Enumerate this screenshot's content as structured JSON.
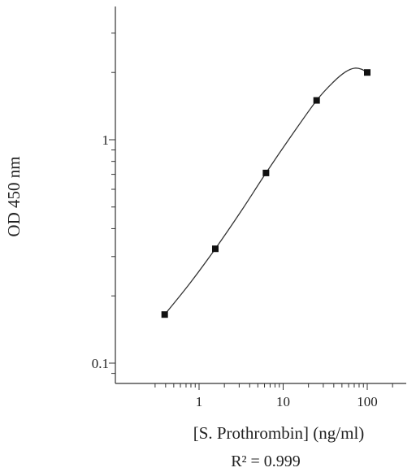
{
  "chart_data": {
    "type": "scatter",
    "title": "",
    "xlabel": "[S. Prothrombin] (ng/ml)",
    "ylabel": "OD 450 nm",
    "annotation": "R² = 0.999",
    "x_scale": "log",
    "y_scale": "log",
    "xlim": [
      0.22,
      300
    ],
    "ylim": [
      0.08,
      5.7
    ],
    "x_ticks": [
      {
        "value": 1,
        "label": "1"
      },
      {
        "value": 10,
        "label": "10"
      },
      {
        "value": 100,
        "label": "100"
      }
    ],
    "y_ticks": [
      {
        "value": 0.1,
        "label": "0.1"
      },
      {
        "value": 1,
        "label": "1"
      }
    ],
    "grid": false,
    "series": [
      {
        "points": [
          {
            "x": 0.39,
            "y": 0.165
          },
          {
            "x": 1.56,
            "y": 0.325
          },
          {
            "x": 6.25,
            "y": 0.71
          },
          {
            "x": 25,
            "y": 1.5
          },
          {
            "x": 100,
            "y": 2.0
          }
        ],
        "fit_curve": [
          [
            0.39,
            0.165
          ],
          [
            0.78,
            0.228
          ],
          [
            1.56,
            0.325
          ],
          [
            3.12,
            0.475
          ],
          [
            6.25,
            0.71
          ],
          [
            12.5,
            1.04
          ],
          [
            25,
            1.5
          ],
          [
            40,
            1.82
          ],
          [
            55,
            2.01
          ],
          [
            70,
            2.09
          ],
          [
            85,
            2.07
          ],
          [
            100,
            2.0
          ]
        ]
      }
    ]
  }
}
